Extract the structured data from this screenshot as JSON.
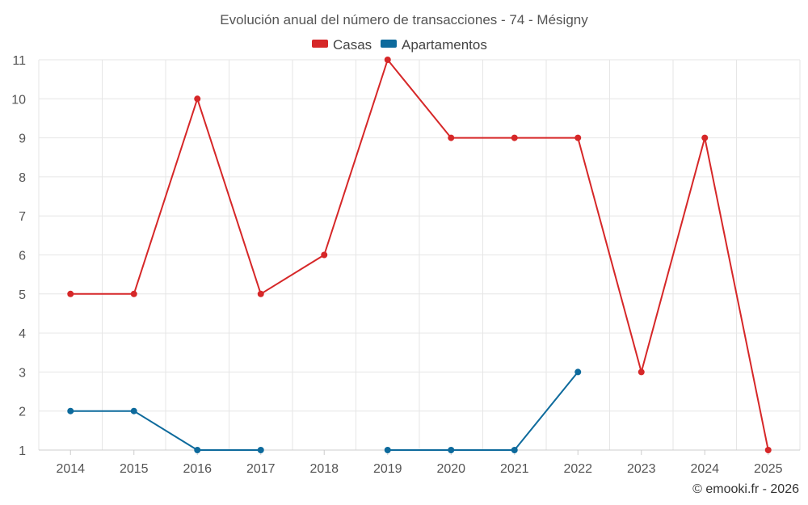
{
  "chart_data": {
    "type": "line",
    "title": "Evolución anual del número de transacciones - 74 - Mésigny",
    "categories": [
      "2014",
      "2015",
      "2016",
      "2017",
      "2018",
      "2019",
      "2020",
      "2021",
      "2022",
      "2023",
      "2024",
      "2025"
    ],
    "ylim": [
      1,
      11
    ],
    "yticks": [
      1,
      2,
      3,
      4,
      5,
      6,
      7,
      8,
      9,
      10,
      11
    ],
    "grid": true,
    "legend_position": "top-center",
    "series": [
      {
        "name": "Casas",
        "color": "#d62728",
        "values": [
          5,
          5,
          10,
          5,
          6,
          11,
          9,
          9,
          9,
          3,
          9,
          1
        ]
      },
      {
        "name": "Apartamentos",
        "color": "#0d6a9c",
        "values": [
          2,
          2,
          1,
          1,
          null,
          1,
          1,
          1,
          3,
          null,
          null,
          null
        ]
      }
    ]
  },
  "credit": "© emooki.fr - 2026"
}
